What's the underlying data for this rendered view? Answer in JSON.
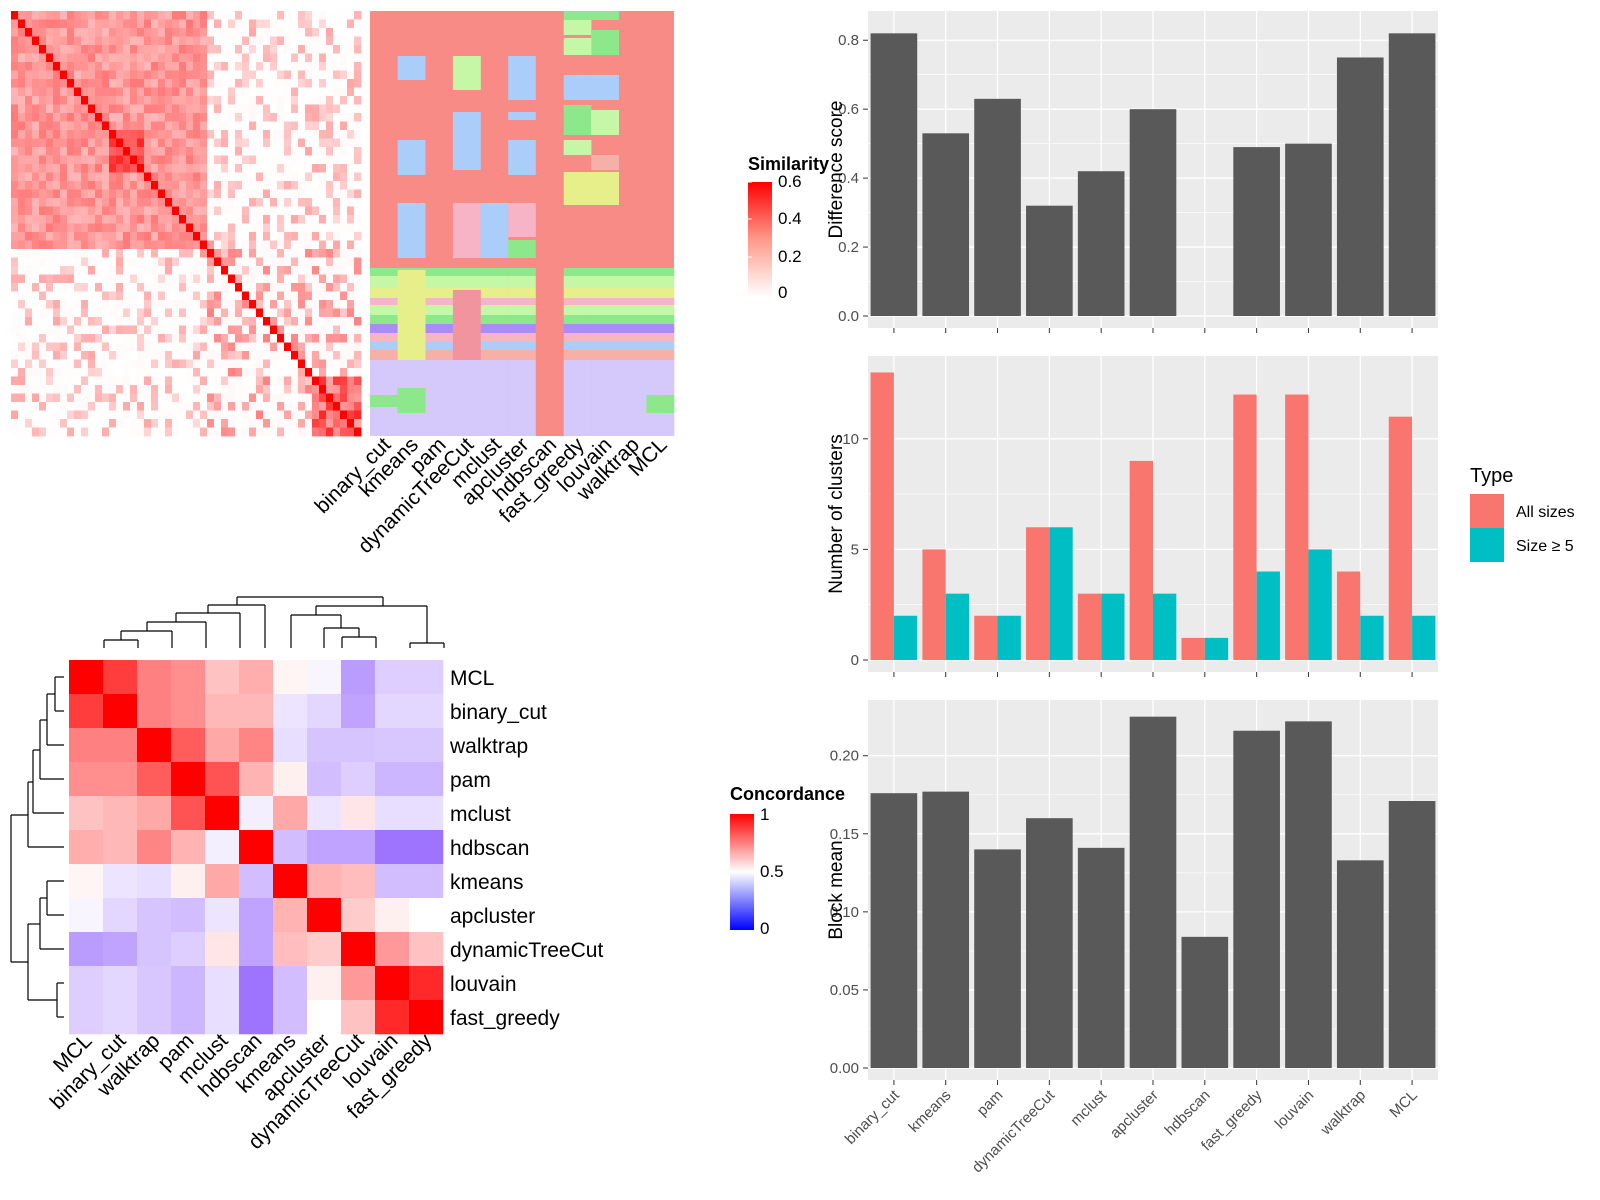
{
  "colors": {
    "panel_bg": "#ebebeb",
    "grid": "#ffffff",
    "bar": "#595959",
    "all_sizes": "#f8766d",
    "size_ge5": "#00bfc4",
    "heat_red": "#ff0000",
    "heat_blue": "#0000ff",
    "class_base": "#f88b85"
  },
  "method_order_heatmap": [
    "binary_cut",
    "kmeans",
    "pam",
    "dynamicTreeCut",
    "mclust",
    "apcluster",
    "hdbscan",
    "fast_greedy",
    "louvain",
    "walktrap",
    "MCL"
  ],
  "similarity_legend": {
    "title": "Similarity",
    "ticks": [
      "0.6",
      "0.4",
      "0.2",
      "0"
    ]
  },
  "concordance": {
    "rows": [
      "MCL",
      "binary_cut",
      "walktrap",
      "pam",
      "mclust",
      "hdbscan",
      "kmeans",
      "apcluster",
      "dynamicTreeCut",
      "louvain",
      "fast_greedy"
    ],
    "matrix": [
      [
        1.0,
        0.88,
        0.75,
        0.72,
        0.62,
        0.66,
        0.52,
        0.47,
        0.2,
        0.35,
        0.35
      ],
      [
        0.88,
        1.0,
        0.75,
        0.72,
        0.64,
        0.64,
        0.42,
        0.38,
        0.22,
        0.38,
        0.38
      ],
      [
        0.75,
        0.75,
        1.0,
        0.82,
        0.67,
        0.74,
        0.4,
        0.32,
        0.32,
        0.33,
        0.33
      ],
      [
        0.72,
        0.72,
        0.82,
        1.0,
        0.84,
        0.65,
        0.53,
        0.3,
        0.35,
        0.28,
        0.28
      ],
      [
        0.62,
        0.64,
        0.67,
        0.84,
        1.0,
        0.45,
        0.67,
        0.42,
        0.55,
        0.4,
        0.4
      ],
      [
        0.66,
        0.64,
        0.74,
        0.65,
        0.45,
        1.0,
        0.3,
        0.22,
        0.22,
        0.08,
        0.08
      ],
      [
        0.52,
        0.42,
        0.4,
        0.53,
        0.67,
        0.3,
        1.0,
        0.65,
        0.63,
        0.3,
        0.3
      ],
      [
        0.47,
        0.38,
        0.32,
        0.3,
        0.42,
        0.22,
        0.65,
        1.0,
        0.6,
        0.53,
        0.5
      ],
      [
        0.2,
        0.22,
        0.32,
        0.35,
        0.55,
        0.22,
        0.63,
        0.6,
        1.0,
        0.7,
        0.62
      ],
      [
        0.35,
        0.38,
        0.33,
        0.28,
        0.4,
        0.08,
        0.3,
        0.53,
        0.7,
        1.0,
        0.92
      ],
      [
        0.35,
        0.38,
        0.33,
        0.28,
        0.4,
        0.08,
        0.3,
        0.5,
        0.62,
        0.92,
        1.0
      ]
    ],
    "legend_title": "Concordance",
    "legend_ticks": [
      "1",
      "0.5",
      "0"
    ]
  },
  "chart_data": [
    {
      "type": "bar",
      "categories": [
        "binary_cut",
        "kmeans",
        "pam",
        "dynamicTreeCut",
        "mclust",
        "apcluster",
        "hdbscan",
        "fast_greedy",
        "louvain",
        "walktrap",
        "MCL"
      ],
      "values": [
        0.82,
        0.53,
        0.63,
        0.32,
        0.42,
        0.6,
        null,
        0.49,
        0.5,
        0.75,
        0.82
      ],
      "ylabel": "Difference score",
      "ylim": [
        0,
        0.85
      ],
      "yticks": [
        "0.0",
        "0.2",
        "0.4",
        "0.6",
        "0.8"
      ]
    },
    {
      "type": "bar",
      "categories": [
        "binary_cut",
        "kmeans",
        "pam",
        "dynamicTreeCut",
        "mclust",
        "apcluster",
        "hdbscan",
        "fast_greedy",
        "louvain",
        "walktrap",
        "MCL"
      ],
      "series": [
        {
          "name": "All sizes",
          "values": [
            13,
            5,
            2,
            6,
            3,
            9,
            1,
            12,
            12,
            4,
            11
          ]
        },
        {
          "name": "Size ≥ 5",
          "values": [
            2,
            3,
            2,
            6,
            3,
            3,
            1,
            4,
            5,
            2,
            2
          ]
        }
      ],
      "ylabel": "Number of clusters",
      "ylim": [
        0,
        13.2
      ],
      "yticks": [
        "0",
        "5",
        "10"
      ],
      "legend_title": "Type",
      "legend_position": "right"
    },
    {
      "type": "bar",
      "categories": [
        "binary_cut",
        "kmeans",
        "pam",
        "dynamicTreeCut",
        "mclust",
        "apcluster",
        "hdbscan",
        "fast_greedy",
        "louvain",
        "walktrap",
        "MCL"
      ],
      "values": [
        0.176,
        0.177,
        0.14,
        0.16,
        0.141,
        0.225,
        0.084,
        0.216,
        0.222,
        0.133,
        0.171
      ],
      "ylabel": "Block mean",
      "ylim": [
        0,
        0.228
      ],
      "yticks": [
        "0.00",
        "0.05",
        "0.10",
        "0.15",
        "0.20"
      ]
    }
  ]
}
